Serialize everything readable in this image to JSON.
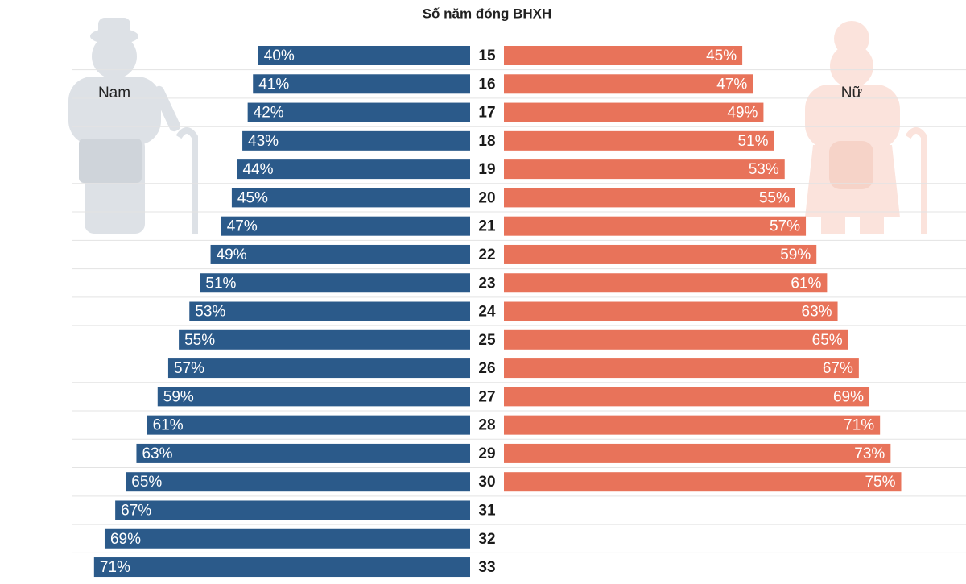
{
  "chart_data": {
    "type": "butterfly",
    "title": "Số năm đóng BHXH",
    "categories": [
      "15",
      "16",
      "17",
      "18",
      "19",
      "20",
      "21",
      "22",
      "23",
      "24",
      "25",
      "26",
      "27",
      "28",
      "29",
      "30",
      "31",
      "32",
      "33"
    ],
    "series": [
      {
        "name": "Nam",
        "color": "#2b5a8a",
        "values": [
          40,
          41,
          42,
          43,
          44,
          45,
          47,
          49,
          51,
          53,
          55,
          57,
          59,
          61,
          63,
          65,
          67,
          69,
          71
        ],
        "value_labels": [
          "40%",
          "41%",
          "42%",
          "43%",
          "44%",
          "45%",
          "47%",
          "49%",
          "51%",
          "53%",
          "55%",
          "57%",
          "59%",
          "61%",
          "63%",
          "65%",
          "67%",
          "69%",
          "71%"
        ]
      },
      {
        "name": "Nữ",
        "color": "#e8735a",
        "values": [
          45,
          47,
          49,
          51,
          53,
          55,
          57,
          59,
          61,
          63,
          65,
          67,
          69,
          71,
          73,
          75,
          null,
          null,
          null
        ],
        "value_labels": [
          "45%",
          "47%",
          "49%",
          "51%",
          "53%",
          "55%",
          "57%",
          "59%",
          "61%",
          "63%",
          "65%",
          "67%",
          "69%",
          "71%",
          "73%",
          "75%",
          null,
          null,
          null
        ]
      }
    ]
  }
}
